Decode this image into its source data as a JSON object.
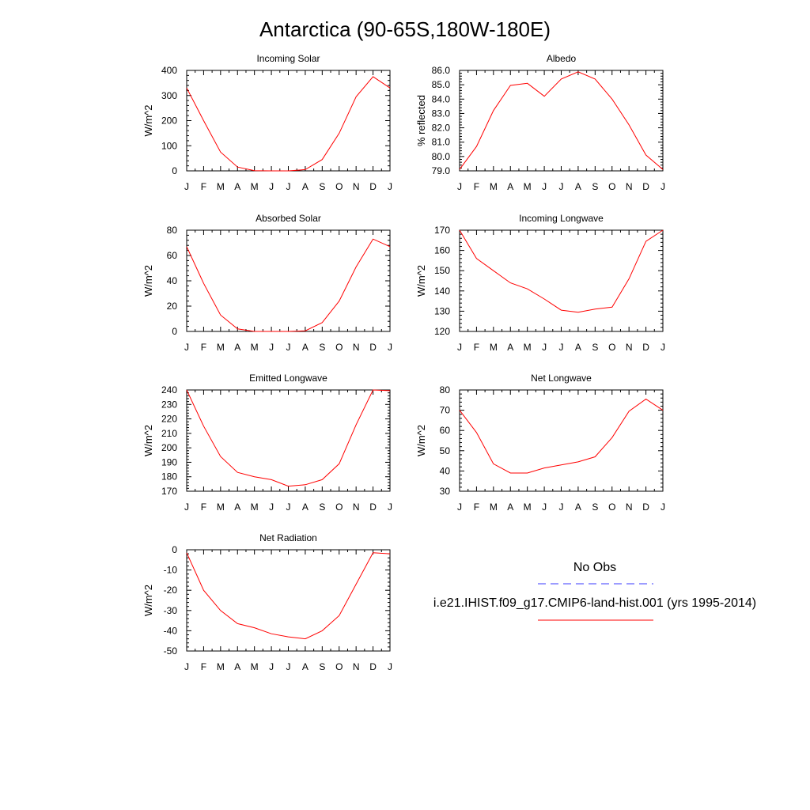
{
  "title": "Antarctica (90-65S,180W-180E)",
  "legend": {
    "obs_label": "No Obs",
    "obs_color": "#3a3aff",
    "model_label": "i.e21.IHIST.f09_g17.CMIP6-land-hist.001 (yrs 1995-2014)",
    "model_color": "#ff0000"
  },
  "chart_data": [
    {
      "type": "line",
      "title": "Incoming Solar",
      "ylabel": "W/m^2",
      "categories": [
        "J",
        "F",
        "M",
        "A",
        "M",
        "J",
        "J",
        "A",
        "S",
        "O",
        "N",
        "D",
        "J"
      ],
      "ylim": [
        0,
        400
      ],
      "yticks": [
        0,
        100,
        200,
        300,
        400
      ],
      "ytick_labels": [
        "0",
        "100",
        "200",
        "300",
        "400"
      ],
      "series": [
        {
          "values": [
            330,
            200,
            75,
            15,
            1,
            0,
            0,
            5,
            45,
            150,
            295,
            375,
            330
          ]
        }
      ]
    },
    {
      "type": "line",
      "title": "Albedo",
      "ylabel": "% reflected",
      "categories": [
        "J",
        "F",
        "M",
        "A",
        "M",
        "J",
        "J",
        "A",
        "S",
        "O",
        "N",
        "D",
        "J"
      ],
      "ylim": [
        79.0,
        86.0
      ],
      "yticks": [
        79.0,
        80.0,
        81.0,
        82.0,
        83.0,
        84.0,
        85.0,
        86.0
      ],
      "ytick_labels": [
        "79.0",
        "80.0",
        "81.0",
        "82.0",
        "83.0",
        "84.0",
        "85.0",
        "86.0"
      ],
      "series": [
        {
          "values": [
            79.1,
            80.7,
            83.2,
            84.95,
            85.1,
            84.2,
            85.4,
            85.9,
            85.4,
            84.0,
            82.2,
            80.1,
            79.1
          ]
        }
      ]
    },
    {
      "type": "line",
      "title": "Absorbed Solar",
      "ylabel": "W/m^2",
      "categories": [
        "J",
        "F",
        "M",
        "A",
        "M",
        "J",
        "J",
        "A",
        "S",
        "O",
        "N",
        "D",
        "J"
      ],
      "ylim": [
        0,
        80
      ],
      "yticks": [
        0,
        20,
        40,
        60,
        80
      ],
      "ytick_labels": [
        "0",
        "20",
        "40",
        "60",
        "80"
      ],
      "series": [
        {
          "values": [
            67,
            38,
            13,
            2,
            0,
            0,
            0,
            0.5,
            7,
            24,
            51,
            73,
            67
          ]
        }
      ]
    },
    {
      "type": "line",
      "title": "Incoming Longwave",
      "ylabel": "W/m^2",
      "categories": [
        "J",
        "F",
        "M",
        "A",
        "M",
        "J",
        "J",
        "A",
        "S",
        "O",
        "N",
        "D",
        "J"
      ],
      "ylim": [
        120,
        170
      ],
      "yticks": [
        120,
        130,
        140,
        150,
        160,
        170
      ],
      "ytick_labels": [
        "120",
        "130",
        "140",
        "150",
        "160",
        "170"
      ],
      "series": [
        {
          "values": [
            170,
            156,
            150,
            144,
            141,
            136,
            130.5,
            129.5,
            131,
            132,
            146,
            164.5,
            170
          ]
        }
      ]
    },
    {
      "type": "line",
      "title": "Emitted Longwave",
      "ylabel": "W/m^2",
      "categories": [
        "J",
        "F",
        "M",
        "A",
        "M",
        "J",
        "J",
        "A",
        "S",
        "O",
        "N",
        "D",
        "J"
      ],
      "ylim": [
        170,
        240
      ],
      "yticks": [
        170,
        180,
        190,
        200,
        210,
        220,
        230,
        240
      ],
      "ytick_labels": [
        "170",
        "180",
        "190",
        "200",
        "210",
        "220",
        "230",
        "240"
      ],
      "series": [
        {
          "values": [
            240,
            215,
            194,
            183,
            180,
            178,
            173.5,
            174.5,
            178,
            189,
            216,
            240,
            239.5
          ]
        }
      ]
    },
    {
      "type": "line",
      "title": "Net Longwave",
      "ylabel": "W/m^2",
      "categories": [
        "J",
        "F",
        "M",
        "A",
        "M",
        "J",
        "J",
        "A",
        "S",
        "O",
        "N",
        "D",
        "J"
      ],
      "ylim": [
        30,
        80
      ],
      "yticks": [
        30,
        40,
        50,
        60,
        70,
        80
      ],
      "ytick_labels": [
        "30",
        "40",
        "50",
        "60",
        "70",
        "80"
      ],
      "series": [
        {
          "values": [
            70,
            59,
            43.5,
            39,
            39,
            41.5,
            43,
            44.5,
            47,
            56.5,
            69.5,
            75.5,
            70
          ]
        }
      ]
    },
    {
      "type": "line",
      "title": "Net Radiation",
      "ylabel": "W/m^2",
      "categories": [
        "J",
        "F",
        "M",
        "A",
        "M",
        "J",
        "J",
        "A",
        "S",
        "O",
        "N",
        "D",
        "J"
      ],
      "ylim": [
        -50,
        0
      ],
      "yticks": [
        -50,
        -40,
        -30,
        -20,
        -10,
        0
      ],
      "ytick_labels": [
        "-50",
        "-40",
        "-30",
        "-20",
        "-10",
        "0"
      ],
      "series": [
        {
          "values": [
            -1.5,
            -20,
            -30,
            -36.5,
            -38.5,
            -41.5,
            -43,
            -44,
            -40,
            -32.5,
            -17,
            -1.5,
            -2
          ]
        }
      ]
    }
  ]
}
